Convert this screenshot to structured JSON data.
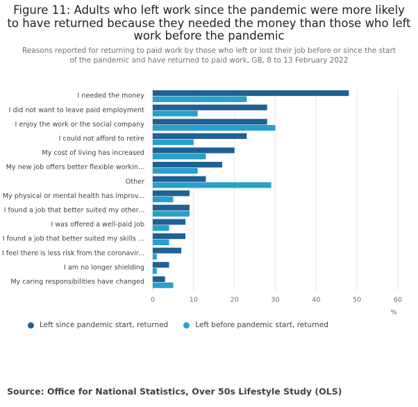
{
  "title": "Figure 11: Adults who left work since the pandemic were more likely to have returned because they needed the money than those who left work before the pandemic",
  "subtitle": "Reasons reported for returning to paid work by those who left or lost their job before or since the start of the pandemic and have returned to paid work, GB, 8 to 13 February 2022",
  "source": "Source: Office for National Statistics, Over 50s Lifestyle Study (OLS)",
  "colors": {
    "since": "#206095",
    "before": "#27a0cc",
    "grid": "#e6e6e6",
    "axis": "#c9c9c9"
  },
  "chart_data": {
    "type": "bar",
    "orientation": "horizontal",
    "xlabel": "%",
    "xlim": [
      0,
      60
    ],
    "xticks": [
      "0",
      "10",
      "20",
      "30",
      "40",
      "50",
      "60"
    ],
    "legend_position": "bottom-left",
    "categories": [
      "I needed the money",
      "I did not want to leave paid employment",
      "I enjoy the work or the social company",
      "I could not afford to retire",
      "My cost of living has increased",
      "My new job offers better flexible workin...",
      "Other",
      "My physical or mental health has improv...",
      "I found a job that better suited my other...",
      "I was offered a well-paid job",
      "I found a job that better suited my skills ...",
      "I feel there is less risk from the coronavir...",
      "I am no longer shielding",
      "My caring responsibilities have changed"
    ],
    "series": [
      {
        "name": "Left since pandemic start, returned",
        "color": "#206095",
        "values": [
          48,
          28,
          28,
          23,
          20,
          17,
          13,
          9,
          9,
          8,
          8,
          7,
          4,
          3
        ]
      },
      {
        "name": "Left before pandemic start, returned",
        "color": "#27a0cc",
        "values": [
          23,
          11,
          30,
          10,
          13,
          11,
          29,
          5,
          9,
          4,
          4,
          1,
          1,
          5
        ]
      }
    ]
  }
}
